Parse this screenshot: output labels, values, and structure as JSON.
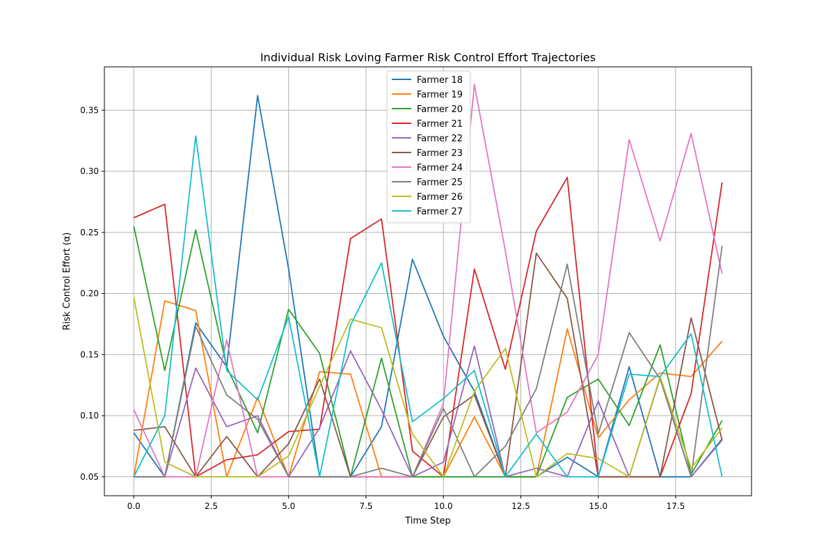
{
  "chart_data": {
    "type": "line",
    "title": "Individual Risk Loving Farmer Risk Control Effort Trajectories",
    "xlabel": "Time Step",
    "ylabel": "Risk Control Effort (α)",
    "xlim": [
      -0.95,
      19.95
    ],
    "ylim": [
      0.0345,
      0.3855
    ],
    "xticks": [
      0.0,
      2.5,
      5.0,
      7.5,
      10.0,
      12.5,
      15.0,
      17.5
    ],
    "xtick_labels": [
      "0.0",
      "2.5",
      "5.0",
      "7.5",
      "10.0",
      "12.5",
      "15.0",
      "17.5"
    ],
    "yticks": [
      0.05,
      0.1,
      0.15,
      0.2,
      0.25,
      0.3,
      0.35
    ],
    "ytick_labels": [
      "0.05",
      "0.10",
      "0.15",
      "0.20",
      "0.25",
      "0.30",
      "0.35"
    ],
    "grid": true,
    "legend_position": "top-center",
    "x": [
      0,
      1,
      2,
      3,
      4,
      5,
      6,
      7,
      8,
      9,
      10,
      11,
      12,
      13,
      14,
      15,
      16,
      17,
      18,
      19
    ],
    "series": [
      {
        "name": "Farmer 18",
        "color": "#1f77b4",
        "values": [
          0.086,
          0.05,
          0.176,
          0.14,
          0.362,
          0.22,
          0.05,
          0.05,
          0.091,
          0.228,
          0.165,
          0.12,
          0.05,
          0.05,
          0.066,
          0.05,
          0.14,
          0.05,
          0.05,
          0.081
        ]
      },
      {
        "name": "Farmer 19",
        "color": "#ff7f0e",
        "values": [
          0.05,
          0.194,
          0.186,
          0.05,
          0.115,
          0.05,
          0.136,
          0.134,
          0.05,
          0.05,
          0.05,
          0.099,
          0.05,
          0.05,
          0.171,
          0.082,
          0.113,
          0.135,
          0.132,
          0.161
        ]
      },
      {
        "name": "Farmer 20",
        "color": "#2ca02c",
        "values": [
          0.255,
          0.137,
          0.252,
          0.14,
          0.086,
          0.187,
          0.151,
          0.05,
          0.147,
          0.05,
          0.05,
          0.05,
          0.05,
          0.05,
          0.115,
          0.13,
          0.092,
          0.158,
          0.052,
          0.096
        ]
      },
      {
        "name": "Farmer 21",
        "color": "#d62728",
        "values": [
          0.262,
          0.273,
          0.05,
          0.064,
          0.068,
          0.087,
          0.089,
          0.245,
          0.261,
          0.071,
          0.05,
          0.22,
          0.138,
          0.251,
          0.295,
          0.05,
          0.05,
          0.05,
          0.118,
          0.291
        ]
      },
      {
        "name": "Farmer 22",
        "color": "#9467bd",
        "values": [
          0.05,
          0.05,
          0.139,
          0.091,
          0.1,
          0.05,
          0.09,
          0.153,
          0.105,
          0.05,
          0.062,
          0.157,
          0.05,
          0.057,
          0.05,
          0.112,
          0.05,
          0.131,
          0.05,
          0.08
        ]
      },
      {
        "name": "Farmer 23",
        "color": "#8c564b",
        "values": [
          0.088,
          0.091,
          0.05,
          0.083,
          0.05,
          0.077,
          0.13,
          0.05,
          0.05,
          0.05,
          0.099,
          0.117,
          0.05,
          0.233,
          0.196,
          0.05,
          0.05,
          0.05,
          0.18,
          0.08
        ]
      },
      {
        "name": "Farmer 24",
        "color": "#e377c2",
        "values": [
          0.105,
          0.05,
          0.05,
          0.162,
          0.05,
          0.05,
          0.05,
          0.05,
          0.05,
          0.05,
          0.11,
          0.371,
          0.235,
          0.086,
          0.103,
          0.15,
          0.326,
          0.243,
          0.331,
          0.216
        ]
      },
      {
        "name": "Farmer 25",
        "color": "#7f7f7f",
        "values": [
          0.05,
          0.05,
          0.173,
          0.117,
          0.097,
          0.05,
          0.05,
          0.05,
          0.057,
          0.05,
          0.106,
          0.05,
          0.075,
          0.122,
          0.224,
          0.085,
          0.168,
          0.13,
          0.05,
          0.239
        ]
      },
      {
        "name": "Farmer 26",
        "color": "#bcbd22",
        "values": [
          0.197,
          0.062,
          0.05,
          0.05,
          0.05,
          0.067,
          0.124,
          0.179,
          0.172,
          0.085,
          0.05,
          0.12,
          0.155,
          0.05,
          0.069,
          0.065,
          0.05,
          0.132,
          0.057,
          0.09
        ]
      },
      {
        "name": "Farmer 27",
        "color": "#17becf",
        "values": [
          0.05,
          0.1,
          0.329,
          0.137,
          0.113,
          0.181,
          0.05,
          0.174,
          0.225,
          0.095,
          0.114,
          0.137,
          0.05,
          0.085,
          0.05,
          0.05,
          0.134,
          0.132,
          0.167,
          0.05
        ]
      }
    ]
  }
}
